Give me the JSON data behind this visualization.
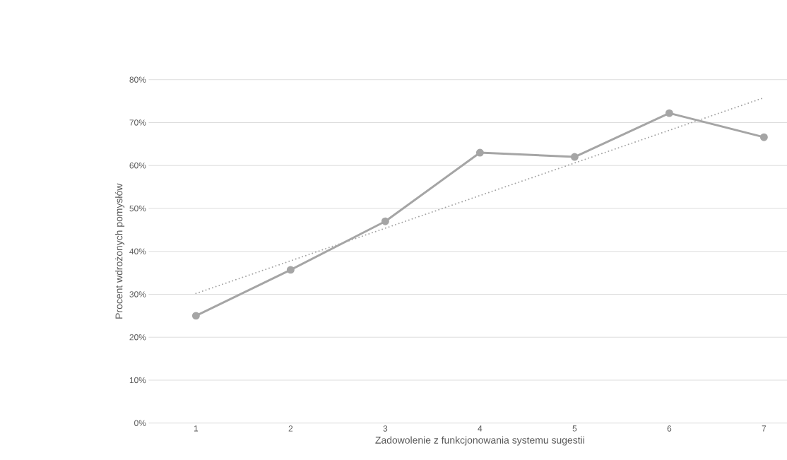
{
  "chart_data": {
    "type": "line",
    "xlabel": "Zadowolenie z funkcjonowania systemu sugestii",
    "ylabel": "Procent wdrożonych pomysłów",
    "x": [
      1,
      2,
      3,
      4,
      5,
      6,
      7
    ],
    "series": [
      {
        "type": "line",
        "color": "#a5a5a5",
        "marker": "circle",
        "line_style": "solid",
        "values": [
          25,
          35.7,
          47,
          63,
          62,
          72.2,
          66.6
        ]
      },
      {
        "type": "line",
        "color": "#a5a5a5",
        "marker": "none",
        "line_style": "dotted",
        "x": [
          1,
          7
        ],
        "values": [
          30.2,
          75.8
        ]
      }
    ],
    "xlim": [
      0.5,
      7.5
    ],
    "xticks": [
      1,
      2,
      3,
      4,
      5,
      6,
      7
    ],
    "ylim": [
      0,
      80
    ],
    "yticks": [
      {
        "value": 0,
        "label": "0%"
      },
      {
        "value": 10,
        "label": "10%"
      },
      {
        "value": 20,
        "label": "20%"
      },
      {
        "value": 30,
        "label": "30%"
      },
      {
        "value": 40,
        "label": "40%"
      },
      {
        "value": 50,
        "label": "50%"
      },
      {
        "value": 60,
        "label": "60%"
      },
      {
        "value": 70,
        "label": "70%"
      },
      {
        "value": 80,
        "label": "80%"
      }
    ],
    "grid": "y"
  }
}
